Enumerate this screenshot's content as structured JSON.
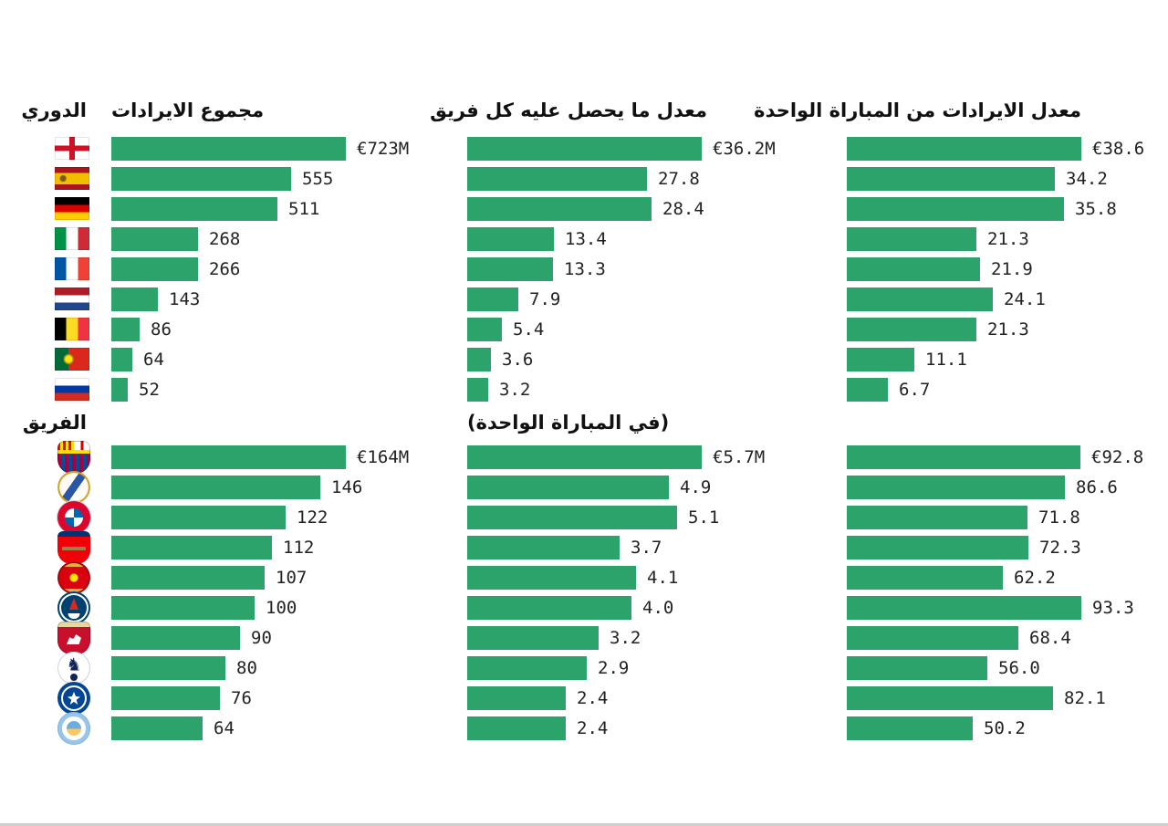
{
  "style": {
    "background": "#ffffff",
    "bar_color": "#2ba36a",
    "value_text_color": "#222222",
    "header_text_color": "#111111"
  },
  "chart_data": [
    {
      "type": "bar",
      "section": "leagues",
      "section_title": "الدوري",
      "orientation": "horizontal",
      "grid": false,
      "legend": "none",
      "rows": [
        {
          "id": "england",
          "label": "England"
        },
        {
          "id": "spain",
          "label": "Spain"
        },
        {
          "id": "germany",
          "label": "Germany"
        },
        {
          "id": "italy",
          "label": "Italy"
        },
        {
          "id": "france",
          "label": "France"
        },
        {
          "id": "netherlands",
          "label": "Netherlands"
        },
        {
          "id": "belgium",
          "label": "Belgium"
        },
        {
          "id": "portugal",
          "label": "Portugal"
        },
        {
          "id": "russia",
          "label": "Russia"
        }
      ],
      "columns": [
        {
          "title": "مجموع الايرادات",
          "unit": "€M",
          "max": 723,
          "values": [
            723,
            555,
            511,
            268,
            266,
            143,
            86,
            64,
            52
          ],
          "labels": [
            "€723M",
            "555",
            "511",
            "268",
            "266",
            "143",
            "86",
            "64",
            "52"
          ]
        },
        {
          "title": "معدل ما يحصل عليه كل فريق",
          "unit": "€M",
          "max": 36.2,
          "values": [
            36.2,
            27.8,
            28.4,
            13.4,
            13.3,
            7.9,
            5.4,
            3.6,
            3.2
          ],
          "labels": [
            "€36.2M",
            "27.8",
            "28.4",
            "13.4",
            "13.3",
            "7.9",
            "5.4",
            "3.6",
            "3.2"
          ]
        },
        {
          "title": "معدل الايرادات من المباراة الواحدة",
          "unit": "€M",
          "max": 38.6,
          "values": [
            38.6,
            34.2,
            35.8,
            21.3,
            21.9,
            24.1,
            21.3,
            11.1,
            6.7
          ],
          "labels": [
            "€38.6",
            "34.2",
            "35.8",
            "21.3",
            "21.9",
            "24.1",
            "21.3",
            "11.1",
            "6.7"
          ]
        }
      ]
    },
    {
      "type": "bar",
      "section": "teams",
      "section_title": "الفريق",
      "orientation": "horizontal",
      "grid": false,
      "legend": "none",
      "rows": [
        {
          "id": "barcelona",
          "label": "FC Barcelona"
        },
        {
          "id": "realmadrid",
          "label": "Real Madrid"
        },
        {
          "id": "bayern",
          "label": "Bayern Munich"
        },
        {
          "id": "arsenal",
          "label": "Arsenal"
        },
        {
          "id": "manutd",
          "label": "Manchester United"
        },
        {
          "id": "psg",
          "label": "Paris Saint-Germain"
        },
        {
          "id": "liverpool",
          "label": "Liverpool"
        },
        {
          "id": "tottenham",
          "label": "Tottenham Hotspur"
        },
        {
          "id": "chelsea",
          "label": "Chelsea"
        },
        {
          "id": "mancity",
          "label": "Manchester City"
        }
      ],
      "columns": [
        {
          "title": "",
          "unit": "€M",
          "max": 164,
          "values": [
            164,
            146,
            122,
            112,
            107,
            100,
            90,
            80,
            76,
            64
          ],
          "labels": [
            "€164M",
            "146",
            "122",
            "112",
            "107",
            "100",
            "90",
            "80",
            "76",
            "64"
          ]
        },
        {
          "title": "(في المباراة الواحدة)",
          "unit": "€M",
          "max": 5.7,
          "values": [
            5.7,
            4.9,
            5.1,
            3.7,
            4.1,
            4.0,
            3.2,
            2.9,
            2.4,
            2.4
          ],
          "labels": [
            "€5.7M",
            "4.9",
            "5.1",
            "3.7",
            "4.1",
            "4.0",
            "3.2",
            "2.9",
            "2.4",
            "2.4"
          ]
        },
        {
          "title": "",
          "unit": "€M",
          "max": 93.3,
          "values": [
            92.8,
            86.6,
            71.8,
            72.3,
            62.2,
            93.3,
            68.4,
            56.0,
            82.1,
            50.2
          ],
          "labels": [
            "€92.8",
            "86.6",
            "71.8",
            "72.3",
            "62.2",
            "93.3",
            "68.4",
            "56.0",
            "82.1",
            "50.2"
          ]
        }
      ]
    }
  ]
}
